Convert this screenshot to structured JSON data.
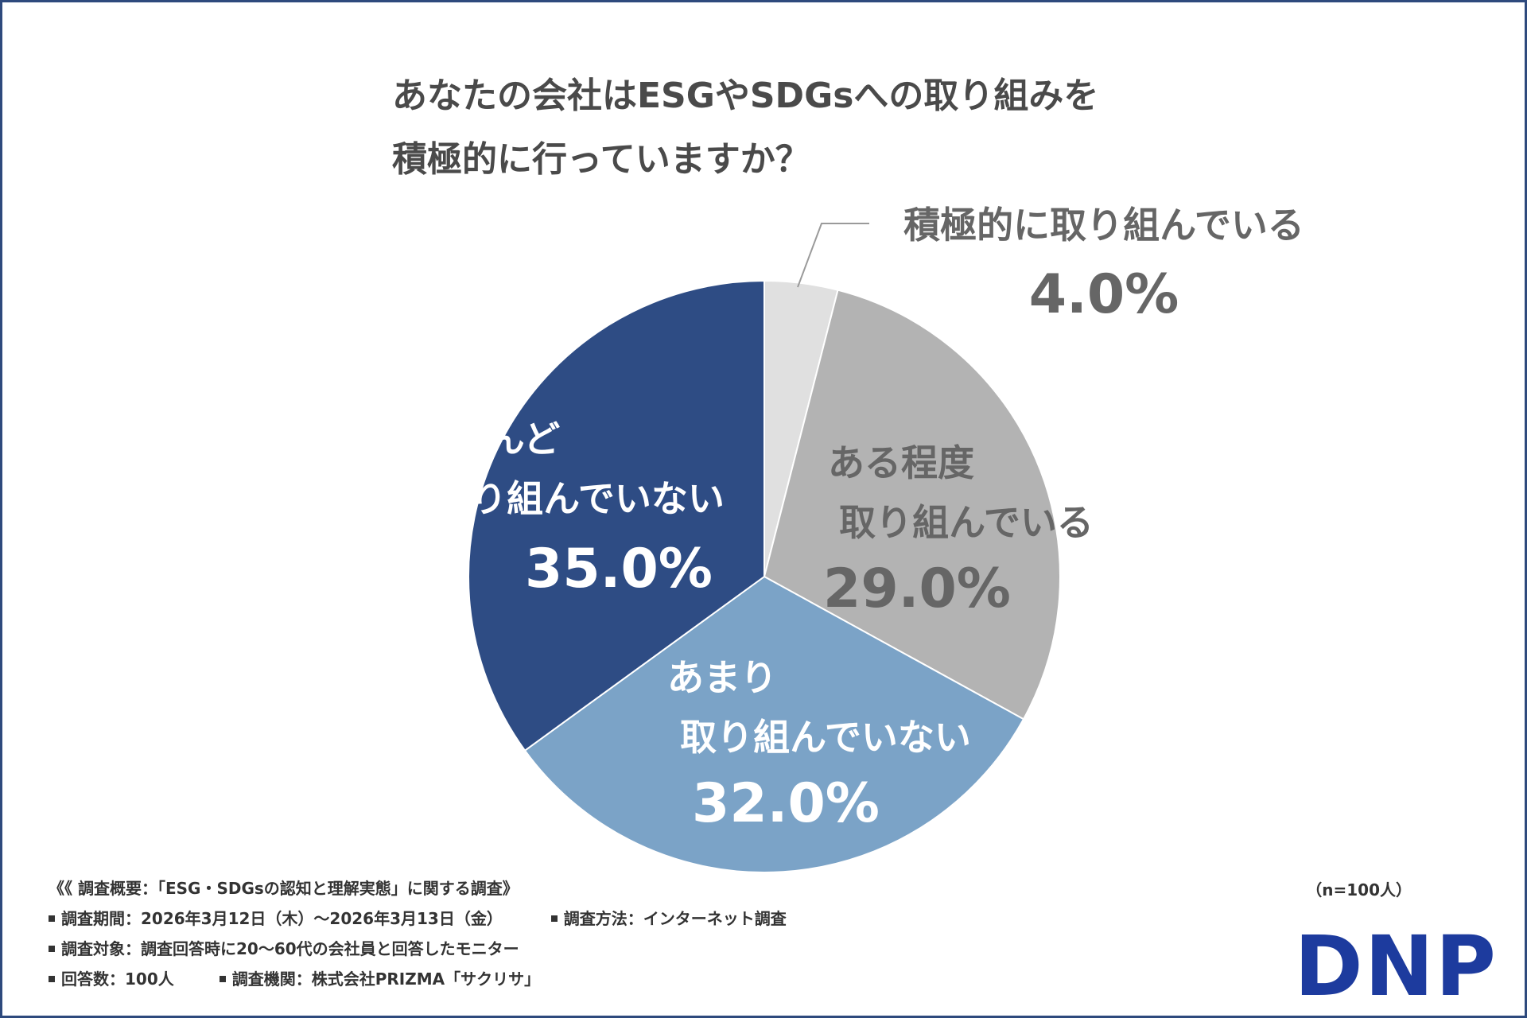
{
  "title_lines": [
    "あなたの会社はESGやSDGsへの取り組みを",
    "積極的に行っていますか？"
  ],
  "chart_data": {
    "type": "pie",
    "title": "あなたの会社はESGやSDGsへの取り組みを積極的に行っていますか？",
    "start_angle_deg": 0,
    "direction": "clockwise",
    "slices": [
      {
        "label_lines": [
          "積極的に取り組んでいる"
        ],
        "value": 4.0,
        "value_text": "4.0%",
        "color": "#e0e0e0",
        "text_color": "#666666"
      },
      {
        "label_lines": [
          "ある程度",
          "取り組んでいる"
        ],
        "value": 29.0,
        "value_text": "29.0%",
        "color": "#b3b3b3",
        "text_color": "#666666"
      },
      {
        "label_lines": [
          "あまり",
          "取り組んでいない"
        ],
        "value": 32.0,
        "value_text": "32.0%",
        "color": "#7ba3c7",
        "text_color": "#ffffff"
      },
      {
        "label_lines": [
          "ほとんど",
          "取り組んでいない"
        ],
        "value": 35.0,
        "value_text": "35.0%",
        "color": "#2e4c84",
        "text_color": "#ffffff"
      }
    ]
  },
  "footer": {
    "heading": "《《 調査概要：「ESG・SDGsの認知と理解実態」に関する調査》",
    "period": "調査期間：2026年3月12日（木）〜2026年3月13日（金）",
    "method": "調査方法：インターネット調査",
    "target": "調査対象：調査回答時に20〜60代の会社員と回答したモニター",
    "responses": "回答数：100人",
    "agency": "調査機関：株式会社PRIZMA「サクリサ」",
    "sample_size": "（n=100人）"
  },
  "logo_text": "DNP",
  "colors": {
    "frame": "#2e4a7d",
    "logo": "#1d3b9e"
  }
}
